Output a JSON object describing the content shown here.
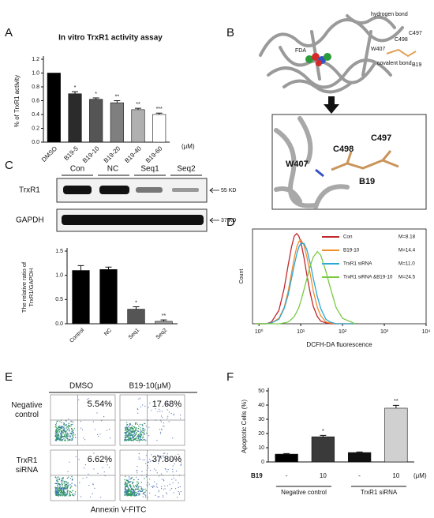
{
  "panel_labels": [
    "A",
    "B",
    "C",
    "D",
    "E",
    "F"
  ],
  "structure": {
    "labels": [
      "hydrogen bond",
      "FDA",
      "W407",
      "C498",
      "C497",
      "covalent bond",
      "B19"
    ],
    "zoom_labels": [
      "C497",
      "C498",
      "W407",
      "B19"
    ]
  },
  "blot": {
    "lanes": [
      "Con",
      "NC",
      "Seq1",
      "Seq2"
    ],
    "rows": [
      "TrxR1",
      "GAPDH"
    ],
    "markers": [
      "55 KD",
      "37 KD"
    ]
  },
  "flow": {
    "columns": [
      "DMSO",
      "B19-10(μM)"
    ],
    "rows": [
      "Negative control",
      "TrxR1 siRNA"
    ],
    "percents": [
      [
        "5.54%",
        "17.68%"
      ],
      [
        "6.62%",
        "37.80%"
      ]
    ],
    "x_label": "Annexin V-FITC"
  },
  "chart_data": [
    {
      "type": "bar",
      "title": "In vitro TrxR1 activity assay",
      "y_label": "% of TrxR1 activity",
      "unit": "(μM)",
      "categories": [
        "DMSO",
        "B19-5",
        "B19-10",
        "B19-20",
        "B19-40",
        "B19-60"
      ],
      "values": [
        1.0,
        0.7,
        0.62,
        0.57,
        0.47,
        0.4
      ],
      "errors": [
        0,
        0.03,
        0.02,
        0.03,
        0.02,
        0.02
      ],
      "significance": [
        null,
        "*",
        "*",
        "**",
        "**",
        "***"
      ],
      "colors": [
        "#000000",
        "#2b2b2b",
        "#555555",
        "#7f7f7f",
        "#b0b0b0",
        "#ffffff"
      ],
      "ylim": [
        0,
        1.2
      ],
      "yticks": [
        {
          "value": 0,
          "label": "0.0"
        },
        0.2,
        0.4,
        0.6,
        0.8,
        {
          "value": 1,
          "label": "1.0"
        },
        1.2
      ]
    },
    {
      "type": "bar",
      "y_label": "The relative ratio of TrxR1/GAPDH",
      "categories": [
        "Control",
        "NC",
        "Seq1",
        "Seq2"
      ],
      "values": [
        1.1,
        1.12,
        0.3,
        0.05
      ],
      "errors": [
        0.1,
        0.05,
        0.05,
        0.03
      ],
      "significance": [
        null,
        null,
        "*",
        "**"
      ],
      "colors": [
        "#000000",
        "#000000",
        "#555555",
        "#9a9a9a"
      ],
      "ylim": [
        0,
        1.5
      ],
      "yticks": [
        {
          "value": 0,
          "label": "0.0"
        },
        0.5,
        {
          "value": 1,
          "label": "1.0"
        },
        1.5
      ]
    },
    {
      "type": "line",
      "x_label": "DCFH-DA fluorescence",
      "y_label": "Count",
      "log_x": true,
      "x": [
        0.8,
        1,
        1.5,
        2,
        3,
        4,
        5,
        6,
        7,
        8,
        9,
        10,
        12,
        14,
        17,
        20,
        25,
        30,
        40,
        50,
        70,
        100,
        200
      ],
      "series": [
        {
          "name": "Con",
          "m_label": "M=8.18",
          "color": "#c0272d",
          "values": [
            0,
            0,
            0,
            2,
            15,
            39,
            65,
            85,
            97,
            100,
            97,
            91,
            73,
            54,
            33,
            19,
            8,
            3,
            1,
            0,
            0,
            0,
            0
          ]
        },
        {
          "name": "B19-10",
          "m_label": "M=14.4",
          "color": "#f08c2a",
          "values": [
            0,
            0,
            0,
            1,
            6,
            18,
            36,
            56,
            73,
            85,
            91,
            93,
            87,
            74,
            54,
            36,
            18,
            9,
            2,
            1,
            0,
            0,
            0
          ]
        },
        {
          "name": "TrxR1 siRNA",
          "m_label": "M=11.0",
          "color": "#2aa7d6",
          "values": [
            0,
            0,
            0,
            1,
            5,
            17,
            32,
            50,
            65,
            77,
            85,
            89,
            89,
            82,
            66,
            50,
            30,
            17,
            5,
            2,
            0,
            0,
            0
          ]
        },
        {
          "name": "TrxR1 siRNA &B19-10",
          "m_label": "M=24.5",
          "color": "#7ac943",
          "values": [
            0,
            0,
            0,
            0,
            0,
            1,
            2,
            5,
            8,
            13,
            18,
            25,
            38,
            50,
            65,
            74,
            80,
            76,
            58,
            41,
            18,
            6,
            0
          ]
        }
      ],
      "xlim": [
        0.7,
        10000
      ],
      "ylim": [
        0,
        105
      ],
      "xticks": [
        {
          "value": 1,
          "label": "10⁰"
        },
        {
          "value": 10,
          "label": "10¹"
        },
        {
          "value": 100,
          "label": "10²"
        },
        {
          "value": 1000,
          "label": "10³"
        },
        {
          "value": 10000,
          "label": "10⁴"
        }
      ]
    },
    {
      "type": "bar",
      "y_label": "Apoptotic Cells (%)",
      "row_label": "B19",
      "unit": "(μM)",
      "categories": [
        "-",
        "10",
        "-",
        "10"
      ],
      "group_labels": [
        "Negative control",
        "TrxR1 siRNA"
      ],
      "values": [
        5.5,
        17.7,
        6.6,
        37.8
      ],
      "errors": [
        0.4,
        1.0,
        0.4,
        2.0
      ],
      "significance": [
        null,
        "*",
        null,
        "**"
      ],
      "colors": [
        "#000000",
        "#3a3a3a",
        "#111111",
        "#d0d0d0"
      ],
      "ylim": [
        0,
        50
      ],
      "yticks": [
        0,
        10,
        20,
        30,
        40,
        50
      ]
    }
  ]
}
